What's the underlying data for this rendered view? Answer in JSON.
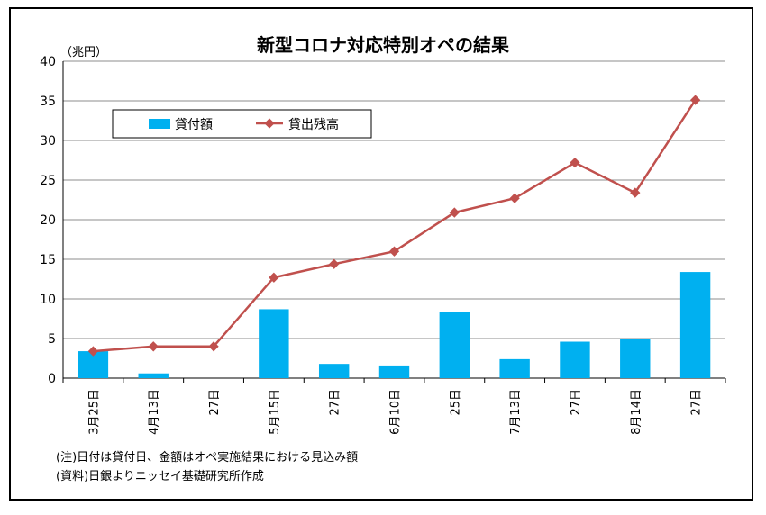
{
  "chart_data": {
    "type": "bar+line",
    "title": "新型コロナ対応特別オペの結果",
    "yunit": "（兆円）",
    "ylim": [
      0,
      40
    ],
    "yticks": [
      0,
      5,
      10,
      15,
      20,
      25,
      30,
      35,
      40
    ],
    "grid": true,
    "legend_position": "top-left",
    "categories": [
      "3月25日",
      "4月13日",
      "27日",
      "5月15日",
      "27日",
      "6月10日",
      "25日",
      "7月13日",
      "27日",
      "8月14日",
      "27日"
    ],
    "series": [
      {
        "name": "貸付額",
        "kind": "bar",
        "color": "#00b0f0",
        "values": [
          3.4,
          0.6,
          0,
          8.7,
          1.8,
          1.6,
          8.3,
          2.4,
          4.6,
          4.9,
          13.4
        ]
      },
      {
        "name": "貸出残高",
        "kind": "line",
        "color": "#c0504d",
        "values": [
          3.4,
          4.0,
          4.0,
          12.7,
          14.4,
          16.0,
          20.9,
          22.7,
          27.2,
          23.4,
          35.1
        ]
      }
    ]
  },
  "notes": {
    "note": "(注)日付は貸付日、金額はオペ実施結果における見込み額",
    "source": "(資料)日銀よりニッセイ基礎研究所作成"
  }
}
